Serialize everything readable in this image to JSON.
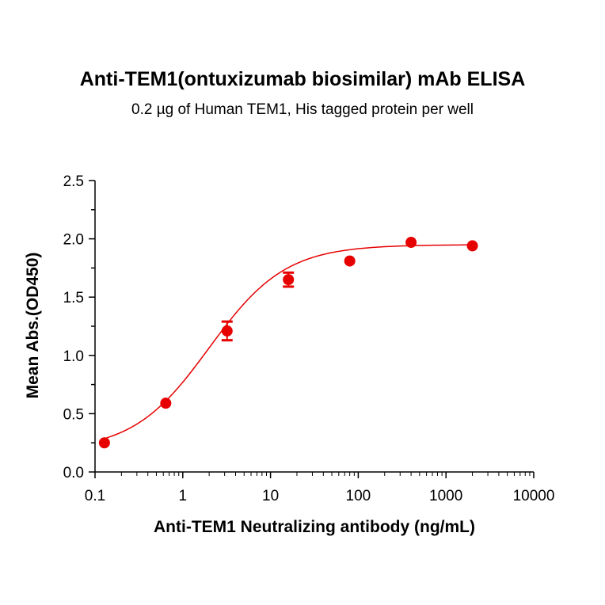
{
  "chart_data": {
    "type": "scatter",
    "title": "Anti-TEM1(ontuxizumab biosimilar) mAb ELISA",
    "subtitle": "0.2 µg of Human TEM1, His tagged protein per well",
    "xlabel": "Anti-TEM1 Neutralizing antibody (ng/mL)",
    "ylabel": "Mean Abs.(OD450)",
    "x_scale": "log",
    "xlim": [
      0.1,
      10000
    ],
    "ylim": [
      0.0,
      2.5
    ],
    "x_ticks": [
      "0.1",
      "1",
      "10",
      "100",
      "1000",
      "10000"
    ],
    "y_ticks": [
      "0.0",
      "0.5",
      "1.0",
      "1.5",
      "2.0",
      "2.5"
    ],
    "grid": false,
    "color": "#e60000",
    "series": [
      {
        "x": [
          0.128,
          0.64,
          3.2,
          16,
          80,
          400,
          2000
        ],
        "y": [
          0.25,
          0.59,
          1.21,
          1.65,
          1.81,
          1.97,
          1.94
        ],
        "error": [
          0,
          0,
          0.08,
          0.06,
          0,
          0,
          0
        ]
      }
    ],
    "fit_curve": {
      "bottom": 0.18,
      "top": 1.95,
      "ec50": 2.0,
      "hill": 1.0
    }
  }
}
